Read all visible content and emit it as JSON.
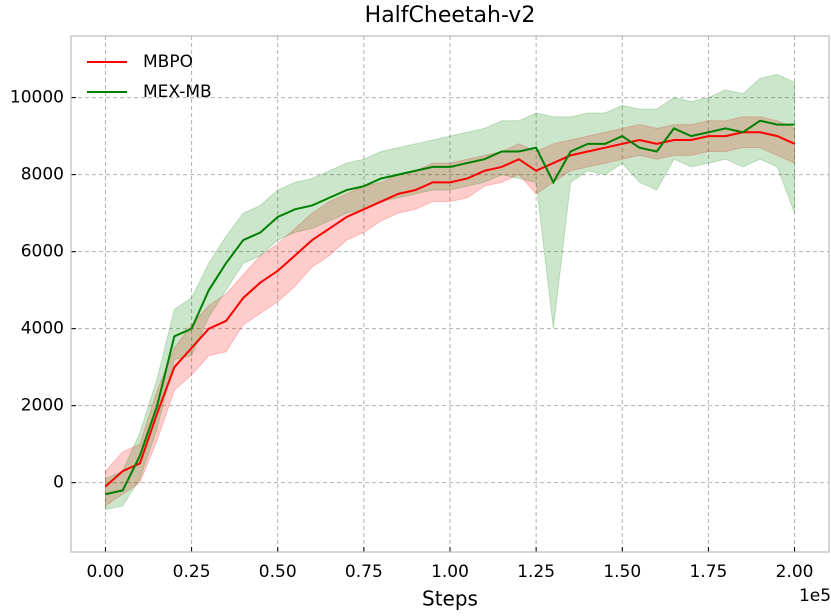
{
  "chart_data": {
    "type": "line",
    "title": "HalfCheetah-v2",
    "x_label": "Steps",
    "x_offset_label": "1e5",
    "x": [
      0,
      5000,
      10000,
      15000,
      20000,
      25000,
      30000,
      35000,
      40000,
      45000,
      50000,
      55000,
      60000,
      65000,
      70000,
      75000,
      80000,
      85000,
      90000,
      95000,
      100000,
      105000,
      110000,
      115000,
      120000,
      125000,
      130000,
      135000,
      140000,
      145000,
      150000,
      155000,
      160000,
      165000,
      170000,
      175000,
      180000,
      185000,
      190000,
      195000,
      200000
    ],
    "series": [
      {
        "name": "MBPO",
        "color": "#ff0000",
        "values": [
          -100,
          300,
          500,
          1800,
          3000,
          3500,
          4000,
          4200,
          4800,
          5200,
          5500,
          5900,
          6300,
          6600,
          6900,
          7100,
          7300,
          7500,
          7600,
          7800,
          7800,
          7900,
          8100,
          8200,
          8400,
          8100,
          8300,
          8500,
          8600,
          8700,
          8800,
          8900,
          8800,
          8900,
          8900,
          9000,
          9000,
          9100,
          9100,
          9000,
          8800
        ],
        "lower": [
          -600,
          -300,
          0,
          1100,
          2400,
          2800,
          3300,
          3400,
          4100,
          4400,
          4700,
          5100,
          5600,
          5900,
          6300,
          6500,
          6800,
          7000,
          7100,
          7300,
          7300,
          7400,
          7700,
          7800,
          8000,
          7500,
          7800,
          8100,
          8200,
          8300,
          8400,
          8500,
          8400,
          8500,
          8500,
          8600,
          8600,
          8700,
          8700,
          8500,
          8300
        ],
        "upper": [
          300,
          800,
          1000,
          2400,
          3500,
          4100,
          4600,
          4900,
          5400,
          5900,
          6200,
          6600,
          7000,
          7300,
          7500,
          7700,
          7800,
          8000,
          8100,
          8300,
          8300,
          8400,
          8500,
          8600,
          8800,
          8600,
          8800,
          8900,
          9000,
          9100,
          9200,
          9300,
          9200,
          9300,
          9300,
          9400,
          9400,
          9500,
          9500,
          9400,
          9200
        ]
      },
      {
        "name": "MEX-MB",
        "color": "#008000",
        "values": [
          -300,
          -200,
          700,
          2000,
          3800,
          4000,
          5000,
          5700,
          6300,
          6500,
          6900,
          7100,
          7200,
          7400,
          7600,
          7700,
          7900,
          8000,
          8100,
          8200,
          8200,
          8300,
          8400,
          8600,
          8600,
          8700,
          7800,
          8600,
          8800,
          8800,
          9000,
          8700,
          8600,
          9200,
          9000,
          9100,
          9200,
          9100,
          9400,
          9300,
          9300
        ],
        "lower": [
          -700,
          -600,
          100,
          1400,
          3200,
          3300,
          4300,
          5000,
          5700,
          5900,
          6300,
          6500,
          6600,
          6800,
          7000,
          7100,
          7300,
          7400,
          7500,
          7600,
          7600,
          7700,
          7800,
          8000,
          7900,
          7800,
          4000,
          7800,
          8100,
          8000,
          8300,
          7800,
          7600,
          8400,
          8200,
          8300,
          8400,
          8200,
          8400,
          8200,
          7000
        ],
        "upper": [
          100,
          300,
          1300,
          2700,
          4500,
          4800,
          5700,
          6400,
          7000,
          7200,
          7600,
          7800,
          7900,
          8100,
          8300,
          8400,
          8600,
          8700,
          8800,
          8900,
          9000,
          9100,
          9200,
          9400,
          9400,
          9600,
          9500,
          9500,
          9600,
          9600,
          9800,
          9700,
          9700,
          10000,
          9900,
          10000,
          10200,
          10100,
          10500,
          10600,
          10400
        ]
      }
    ],
    "xlim": [
      -10000,
      210000
    ],
    "ylim": [
      -1800,
      11600
    ],
    "xticks": [
      {
        "value": 0,
        "label": "0.00"
      },
      {
        "value": 25000,
        "label": "0.25"
      },
      {
        "value": 50000,
        "label": "0.50"
      },
      {
        "value": 75000,
        "label": "0.75"
      },
      {
        "value": 100000,
        "label": "1.00"
      },
      {
        "value": 125000,
        "label": "1.25"
      },
      {
        "value": 150000,
        "label": "1.50"
      },
      {
        "value": 175000,
        "label": "1.75"
      },
      {
        "value": 200000,
        "label": "2.00"
      }
    ],
    "yticks": [
      0,
      2000,
      4000,
      6000,
      8000,
      10000
    ],
    "grid": true,
    "legend": "upper left"
  }
}
